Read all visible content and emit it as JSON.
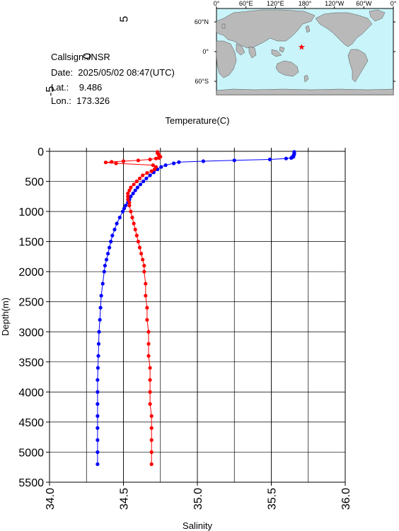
{
  "station": {
    "callsign_line": "Callsign:JNSR",
    "date_line": "Date:  2025/05/02 08:47(UTC)",
    "lat_line": "Lat.:    9.486",
    "lon_line": "Lon.:  173.326"
  },
  "map": {
    "lon_ticks": [
      "0°",
      "60°E",
      "120°E",
      "180°",
      "120°W",
      "60°W",
      "0°"
    ],
    "lat_ticks": [
      "60°N",
      "0°",
      "60°S"
    ],
    "marker": {
      "lon": 173.3,
      "lat": 9.5,
      "color": "#ff0000"
    },
    "ocean_color": "#c8f4fa",
    "land_color": "#b9b9b9"
  },
  "chart_data": {
    "type": "line",
    "ylabel": "Depth(m)",
    "ylim": [
      0,
      5500
    ],
    "y_inverted": true,
    "y_ticks": [
      0,
      500,
      1000,
      1500,
      2000,
      2500,
      3000,
      3500,
      4000,
      4500,
      5000,
      5500
    ],
    "top_axis": {
      "label": "Temperature(C)",
      "lim": [
        -5,
        35
      ],
      "ticks": [
        -5,
        0,
        5,
        10,
        15,
        20,
        25,
        30,
        35
      ]
    },
    "bottom_axis": {
      "label": "Salinity",
      "lim": [
        34.0,
        36.0
      ],
      "ticks": [
        "34.0",
        "34.5",
        "35.0",
        "35.5",
        "36.0"
      ]
    },
    "grid": true,
    "series": [
      {
        "variable": "temperature",
        "axis": "top",
        "color": "#0000ff",
        "depth": [
          10,
          30,
          50,
          70,
          90,
          100,
          110,
          120,
          135,
          150,
          165,
          180,
          200,
          230,
          260,
          300,
          350,
          400,
          450,
          500,
          550,
          600,
          650,
          700,
          750,
          800,
          850,
          900,
          950,
          1000,
          1100,
          1200,
          1300,
          1400,
          1500,
          1600,
          1700,
          1800,
          1900,
          2000,
          2200,
          2400,
          2600,
          2800,
          3000,
          3200,
          3400,
          3600,
          3800,
          4000,
          4200,
          4400,
          4600,
          4800,
          5000,
          5200
        ],
        "values": [
          28.1,
          28.1,
          28.1,
          28.0,
          28.0,
          27.8,
          27.7,
          27.0,
          24.8,
          20.0,
          15.8,
          12.5,
          11.8,
          10.7,
          10.1,
          9.6,
          9.1,
          8.6,
          8.1,
          7.7,
          7.3,
          6.9,
          6.6,
          6.3,
          6.0,
          5.8,
          5.6,
          5.3,
          5.1,
          4.9,
          4.5,
          4.1,
          3.8,
          3.5,
          3.3,
          3.1,
          2.9,
          2.7,
          2.5,
          2.4,
          2.2,
          2.0,
          1.9,
          1.8,
          1.7,
          1.65,
          1.6,
          1.55,
          1.5,
          1.5,
          1.5,
          1.5,
          1.5,
          1.5,
          1.5,
          1.5
        ]
      },
      {
        "variable": "salinity",
        "axis": "bottom",
        "color": "#ff0000",
        "depth": [
          10,
          30,
          50,
          70,
          90,
          110,
          120,
          135,
          150,
          165,
          175,
          185,
          200,
          230,
          260,
          300,
          330,
          360,
          400,
          450,
          500,
          550,
          600,
          650,
          700,
          750,
          800,
          850,
          900,
          1000,
          1100,
          1200,
          1300,
          1400,
          1500,
          1600,
          1700,
          1800,
          1900,
          2000,
          2200,
          2400,
          2600,
          2800,
          3000,
          3200,
          3400,
          3600,
          3800,
          4000,
          4200,
          4400,
          4600,
          4800,
          5000,
          5200
        ],
        "values": [
          34.73,
          34.73,
          34.74,
          34.74,
          34.75,
          34.74,
          34.72,
          34.68,
          34.6,
          34.5,
          34.42,
          34.38,
          34.45,
          34.7,
          34.72,
          34.71,
          34.69,
          34.66,
          34.63,
          34.61,
          34.59,
          34.57,
          34.55,
          34.54,
          34.53,
          34.53,
          34.53,
          34.54,
          34.54,
          34.55,
          34.56,
          34.57,
          34.58,
          34.59,
          34.6,
          34.61,
          34.62,
          34.63,
          34.64,
          34.64,
          34.65,
          34.65,
          34.66,
          34.66,
          34.67,
          34.67,
          34.67,
          34.68,
          34.68,
          34.68,
          34.68,
          34.69,
          34.69,
          34.69,
          34.69,
          34.69
        ]
      }
    ]
  }
}
